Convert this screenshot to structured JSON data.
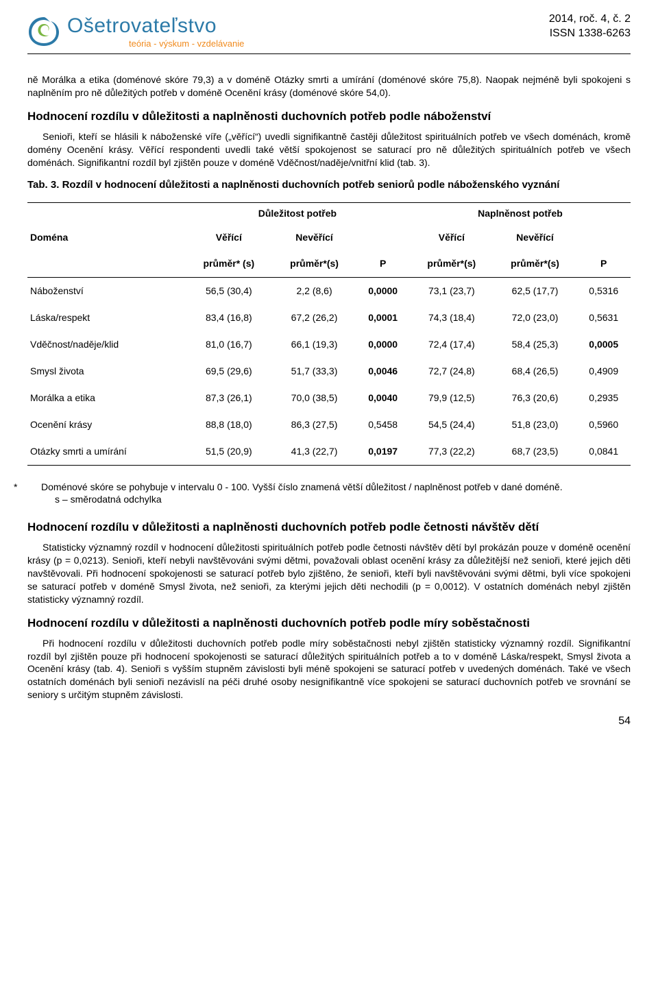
{
  "header": {
    "logo_title": "Ošetrovateľstvo",
    "logo_subtitle": "teória - výskum - vzdelávanie",
    "issue_line1": "2014, roč. 4, č. 2",
    "issue_line2": "ISSN 1338-6263",
    "logo_colors": {
      "outer": "#2c7aa8",
      "inner": "#7bb642"
    }
  },
  "intro_para": "ně Morálka a etika (doménové skóre 79,3) a v doméně Otázky smrti a umírání (doménové skóre 75,8). Naopak nejméně byli spokojeni s naplněním pro ně důležitých potřeb v doméně Ocenění krásy (doménové skóre 54,0).",
  "sec1_heading": "Hodnocení rozdílu v důležitosti a naplněnosti duchovních potřeb podle náboženství",
  "sec1_para": "Senioři, kteří se hlásili k náboženské víře („věřící“) uvedli signifikantně častěji důležitost spirituálních potřeb ve všech doménách, kromě domény Ocenění krásy. Věřící respondenti uvedli také větší spokojenost se saturací pro ně důležitých spirituálních potřeb ve všech doménách. Signifikantní rozdíl byl zjištěn pouze v doméně Vděčnost/naděje/vnitřní klid (tab. 3).",
  "tab3_caption": "Tab. 3. Rozdíl v hodnocení důležitosti a naplněnosti duchovních potřeb seniorů podle náboženského vyznání",
  "tab3": {
    "group_headers": [
      "Důležitost potřeb",
      "Naplněnost potřeb"
    ],
    "domain_label": "Doména",
    "col_subgroups": [
      "Věřící",
      "Nevěřící",
      "Věřící",
      "Nevěřící"
    ],
    "sub_headers": [
      "průměr* (s)",
      "průměr*(s)",
      "P",
      "průměr*(s)",
      "průměr*(s)",
      "P"
    ],
    "rows": [
      {
        "label": "Náboženství",
        "cells": [
          "56,5 (30,4)",
          "2,2 (8,6)",
          "0,0000",
          "73,1 (23,7)",
          "62,5 (17,7)",
          "0,5316"
        ],
        "bold": [
          2
        ]
      },
      {
        "label": "Láska/respekt",
        "cells": [
          "83,4 (16,8)",
          "67,2 (26,2)",
          "0,0001",
          "74,3 (18,4)",
          "72,0 (23,0)",
          "0,5631"
        ],
        "bold": [
          2
        ]
      },
      {
        "label": "Vděčnost/naděje/klid",
        "cells": [
          "81,0 (16,7)",
          "66,1 (19,3)",
          "0,0000",
          "72,4 (17,4)",
          "58,4 (25,3)",
          "0,0005"
        ],
        "bold": [
          2,
          5
        ]
      },
      {
        "label": "Smysl života",
        "cells": [
          "69,5 (29,6)",
          "51,7 (33,3)",
          "0,0046",
          "72,7 (24,8)",
          "68,4 (26,5)",
          "0,4909"
        ],
        "bold": [
          2
        ]
      },
      {
        "label": "Morálka a etika",
        "cells": [
          "87,3 (26,1)",
          "70,0 (38,5)",
          "0,0040",
          "79,9 (12,5)",
          "76,3 (20,6)",
          "0,2935"
        ],
        "bold": [
          2
        ]
      },
      {
        "label": "Ocenění krásy",
        "cells": [
          "88,8 (18,0)",
          "86,3 (27,5)",
          "0,5458",
          "54,5 (24,4)",
          "51,8 (23,0)",
          "0,5960"
        ],
        "bold": []
      },
      {
        "label": "Otázky smrti a umírání",
        "cells": [
          "51,5 (20,9)",
          "41,3 (22,7)",
          "0,0197",
          "77,3 (22,2)",
          "68,7 (23,5)",
          "0,0841"
        ],
        "bold": [
          2
        ]
      }
    ]
  },
  "footnote_line1": "Doménové skóre se pohybuje v intervalu 0 - 100. Vyšší číslo znamená větší důležitost / naplněnost potřeb v dané doméně.",
  "footnote_line2": "s – směrodatná odchylka",
  "sec2_heading": "Hodnocení rozdílu v důležitosti a naplněnosti duchovních potřeb podle četnosti návštěv dětí",
  "sec2_para": "Statisticky významný rozdíl v hodnocení důležitosti spirituálních potřeb podle četnosti návštěv dětí byl prokázán pouze v doméně ocenění krásy (p = 0,0213). Senioři, kteří nebyli navštěvováni svými dětmi, považovali oblast ocenění krásy za důležitější než senioři, které jejich děti navštěvovali. Při hodnocení spokojenosti se saturací potřeb bylo zjištěno, že senioři, kteří byli navštěvováni svými dětmi, byli více spokojeni se saturací potřeb v doméně Smysl života, než senioři, za kterými jejich děti nechodili (p = 0,0012). V ostatních doménách nebyl zjištěn statisticky významný rozdíl.",
  "sec3_heading": "Hodnocení rozdílu v důležitosti a naplněnosti duchovních potřeb podle míry soběstačnosti",
  "sec3_para": "Při hodnocení rozdílu v důležitosti duchovních potřeb podle míry soběstačnosti nebyl zjištěn statisticky významný rozdíl. Signifikantní rozdíl byl zjištěn pouze při hodnocení spokojenosti se saturací důležitých spirituálních potřeb a to v doméně Láska/respekt, Smysl života a Ocenění krásy (tab. 4). Senioři s vyšším stupněm závislosti byli méně spokojeni se saturací potřeb v uvedených doménách. Také ve všech ostatních doménách byli senioři nezávislí na péči druhé osoby nesignifikantně více spokojeni se saturací duchovních potřeb ve srovnání se seniory s určitým stupněm závislosti.",
  "page_number": "54"
}
